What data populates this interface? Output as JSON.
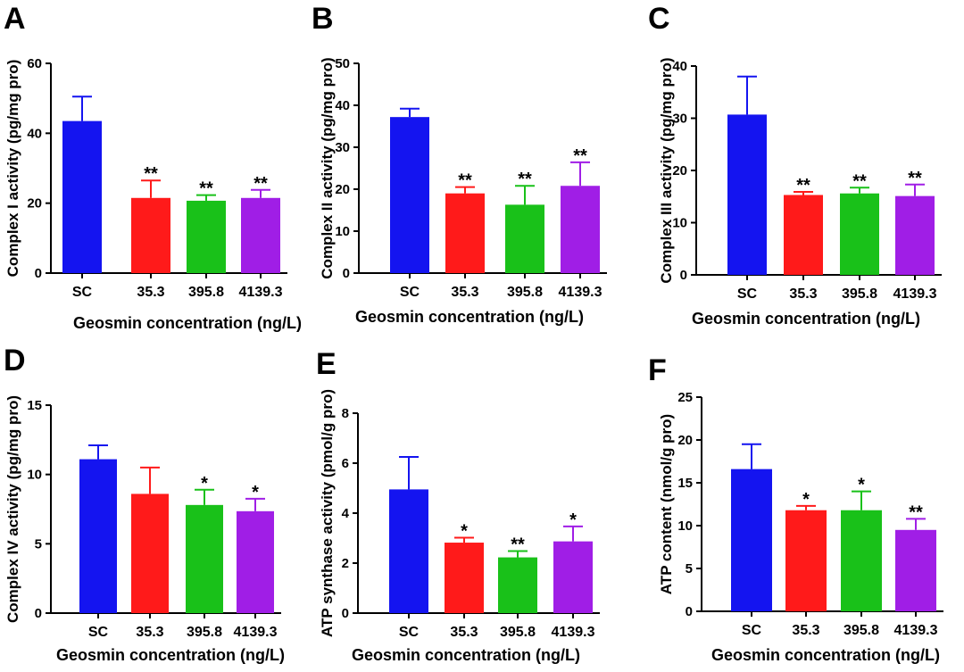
{
  "colors": [
    "#1414f0",
    "#ff1a1a",
    "#19c119",
    "#a01ee6"
  ],
  "chart_data": [
    {
      "type": "bar",
      "panel": "A",
      "categories": [
        "SC",
        "35.3",
        "395.8",
        "4139.3"
      ],
      "values": [
        43.5,
        21.5,
        20.7,
        21.5
      ],
      "errors": [
        7,
        5,
        1.6,
        2.3
      ],
      "significance": [
        "",
        "**",
        "**",
        "**"
      ],
      "ylabel": "Complex I activity (pg/mg pro)",
      "xlabel": "Geosmin concentration (ng/L)",
      "ylim": [
        0,
        60
      ],
      "yticks": [
        0,
        20,
        40,
        60
      ]
    },
    {
      "type": "bar",
      "panel": "B",
      "categories": [
        "SC",
        "35.3",
        "395.8",
        "4139.3"
      ],
      "values": [
        37.2,
        19,
        16.3,
        20.8
      ],
      "errors": [
        2,
        1.5,
        4.5,
        5.6
      ],
      "significance": [
        "",
        "**",
        "**",
        "**"
      ],
      "ylabel": "Complex II activity (pg/mg pro)",
      "xlabel": "Geosmin concentration (ng/L)",
      "ylim": [
        0,
        50
      ],
      "yticks": [
        0,
        10,
        20,
        30,
        40,
        50
      ]
    },
    {
      "type": "bar",
      "panel": "C",
      "categories": [
        "SC",
        "35.3",
        "395.8",
        "4139.3"
      ],
      "values": [
        30.7,
        15.3,
        15.6,
        15.1
      ],
      "errors": [
        7.3,
        0.6,
        1.1,
        2.2
      ],
      "significance": [
        "",
        "**",
        "**",
        "**"
      ],
      "ylabel": "Complex III activity (pg/mg pro)",
      "xlabel": "Geosmin concentration (ng/L)",
      "ylim": [
        0,
        40
      ],
      "yticks": [
        0,
        10,
        20,
        30,
        40
      ]
    },
    {
      "type": "bar",
      "panel": "D",
      "categories": [
        "SC",
        "35.3",
        "395.8",
        "4139.3"
      ],
      "values": [
        11.1,
        8.6,
        7.8,
        7.35
      ],
      "errors": [
        1,
        1.9,
        1.1,
        0.9
      ],
      "significance": [
        "",
        "",
        "*",
        "*"
      ],
      "ylabel": "Complex IV activity (pg/mg pro)",
      "xlabel": "Geosmin concentration (ng/L)",
      "ylim": [
        0,
        15
      ],
      "yticks": [
        0,
        5,
        10,
        15
      ]
    },
    {
      "type": "bar",
      "panel": "E",
      "categories": [
        "SC",
        "35.3",
        "395.8",
        "4139.3"
      ],
      "values": [
        4.95,
        2.82,
        2.23,
        2.87
      ],
      "errors": [
        1.3,
        0.2,
        0.25,
        0.6
      ],
      "significance": [
        "",
        "*",
        "**",
        "*"
      ],
      "ylabel": "ATP synthase activity (pmol/g pro)",
      "xlabel": "Geosmin concentration (ng/L)",
      "ylim": [
        0,
        8
      ],
      "yticks": [
        0,
        2,
        4,
        6,
        8
      ]
    },
    {
      "type": "bar",
      "panel": "F",
      "categories": [
        "SC",
        "35.3",
        "395.8",
        "4139.3"
      ],
      "values": [
        16.6,
        11.8,
        11.8,
        9.5
      ],
      "errors": [
        2.9,
        0.5,
        2.2,
        1.3
      ],
      "significance": [
        "",
        "*",
        "*",
        "**"
      ],
      "ylabel": "ATP content (nmol/g pro)",
      "xlabel": "Geosmin concentration (ng/L)",
      "ylim": [
        0,
        25
      ],
      "yticks": [
        0,
        5,
        10,
        15,
        20,
        25
      ]
    }
  ]
}
